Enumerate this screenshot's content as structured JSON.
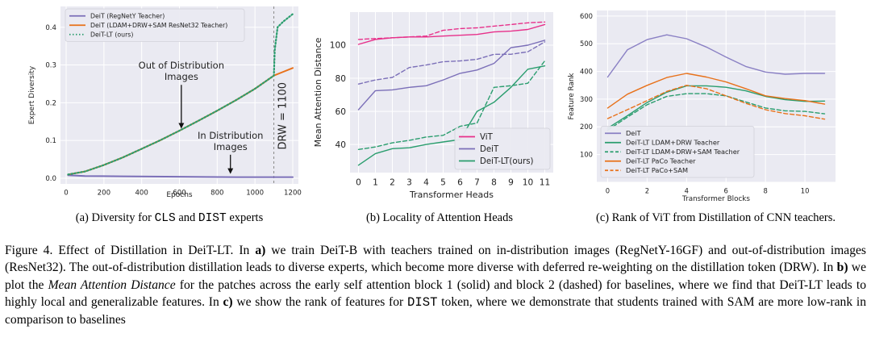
{
  "panels": {
    "a": {
      "caption_pre": "(a) Diversity for ",
      "caption_code1": "CLS",
      "caption_mid": " and ",
      "caption_code2": "DIST",
      "caption_post": " experts"
    },
    "b": {
      "caption": "(b) Locality of Attention Heads"
    },
    "c": {
      "caption": "(c) Rank of ViT from Distillation of CNN teachers."
    }
  },
  "figure_caption": {
    "p1": "Figure 4. Effect of Distillation in DeiT-LT. In ",
    "p2": "a)",
    "p3": " we train DeiT-B with teachers trained on in-distribution images (RegNetY-16GF) and out-of-distribution images (ResNet32). The out-of-distribution distillation leads to diverse experts, which become more diverse with deferred re-weighting on the distillation token (DRW). In ",
    "p4": "b)",
    "p5": " we plot the ",
    "p6": "Mean Attention Distance",
    "p7": " for the patches across the early self attention block 1 (solid) and block 2 (dashed) for baselines, where we find that DeiT-LT leads to highly local and generalizable features. In ",
    "p8": "c)",
    "p9": " we show the rank of features for ",
    "p10": "DIST",
    "p11": " token, where we demonstrate that students trained with SAM are more low-rank in comparison to baselines"
  },
  "chart_data": [
    {
      "type": "line",
      "title": "",
      "xlabel": "Epochs",
      "ylabel": "Expert Diversity",
      "xlim": [
        -30,
        1230
      ],
      "ylim": [
        -0.015,
        0.455
      ],
      "xticks": [
        0,
        200,
        400,
        600,
        800,
        1000,
        1200
      ],
      "yticks": [
        0.0,
        0.1,
        0.2,
        0.3,
        0.4
      ],
      "ytick_labels": [
        "0.0",
        "0.1",
        "0.2",
        "0.3",
        "0.4"
      ],
      "legend_position": "upper-left",
      "series": [
        {
          "name": "DeiT (RegNetY Teacher)",
          "color": "#7b6fb8",
          "style": "solid",
          "x": [
            10,
            100,
            300,
            600,
            900,
            1200
          ],
          "y": [
            0.008,
            0.006,
            0.005,
            0.004,
            0.003,
            0.003
          ]
        },
        {
          "name": "DeiT (LDAM+DRW+SAM ResNet32 Teacher)",
          "color": "#e8711a",
          "style": "solid",
          "x": [
            10,
            100,
            200,
            300,
            400,
            500,
            600,
            700,
            800,
            900,
            1000,
            1100,
            1150,
            1200
          ],
          "y": [
            0.01,
            0.018,
            0.035,
            0.055,
            0.078,
            0.101,
            0.126,
            0.152,
            0.179,
            0.207,
            0.237,
            0.272,
            0.282,
            0.292
          ]
        },
        {
          "name": "DeiT-LT (ours)",
          "color": "#2a9d6e",
          "style": "dotted",
          "x": [
            10,
            100,
            200,
            300,
            400,
            500,
            600,
            700,
            800,
            900,
            1000,
            1100,
            1105,
            1120,
            1150,
            1200
          ],
          "y": [
            0.01,
            0.018,
            0.035,
            0.055,
            0.078,
            0.101,
            0.126,
            0.152,
            0.179,
            0.207,
            0.237,
            0.272,
            0.34,
            0.4,
            0.415,
            0.435
          ]
        }
      ],
      "vline": {
        "x": 1100,
        "label": "DRW = 1100"
      },
      "annotations": [
        {
          "text": [
            "Out of Distribution",
            "Images"
          ],
          "arrow_to": {
            "x": 610,
            "y": 0.125
          },
          "text_pos": {
            "x": 610,
            "y": 0.29
          }
        },
        {
          "text": [
            "In Distribution",
            "Images"
          ],
          "arrow_to": {
            "x": 870,
            "y": 0.005
          },
          "text_pos": {
            "x": 870,
            "y": 0.105
          }
        }
      ]
    },
    {
      "type": "line",
      "title": "",
      "xlabel": "Transformer Heads",
      "ylabel": "Mean Attention Distance",
      "xlim": [
        -0.5,
        11.5
      ],
      "ylim": [
        23,
        120
      ],
      "xticks": [
        0,
        1,
        2,
        3,
        4,
        5,
        6,
        7,
        8,
        9,
        10,
        11
      ],
      "yticks": [
        40,
        60,
        80,
        100
      ],
      "ytick_labels": [
        "40",
        "60",
        "80",
        "100"
      ],
      "legend_position": "lower-right",
      "series": [
        {
          "name": "ViT",
          "color": "#e7308a",
          "style": "solid",
          "x": [
            0,
            1,
            2,
            3,
            4,
            5,
            6,
            7,
            8,
            9,
            10,
            11
          ],
          "y": [
            100.5,
            103.5,
            104.5,
            105,
            105,
            105.5,
            106,
            106.5,
            108,
            108.5,
            109.5,
            112.5
          ]
        },
        {
          "name": "",
          "color": "#e7308a",
          "style": "dashed",
          "x": [
            0,
            1,
            2,
            3,
            4,
            5,
            6,
            7,
            8,
            9,
            10,
            11
          ],
          "y": [
            103.5,
            104,
            104.5,
            105,
            105.5,
            109,
            110,
            110.5,
            111.5,
            112.5,
            113.5,
            114
          ]
        },
        {
          "name": "DeiT",
          "color": "#7b6fb8",
          "style": "solid",
          "x": [
            0,
            1,
            2,
            3,
            4,
            5,
            6,
            7,
            8,
            9,
            10,
            11
          ],
          "y": [
            61,
            72.5,
            73,
            74.5,
            75.5,
            79,
            83,
            85,
            89,
            98.5,
            100,
            103
          ]
        },
        {
          "name": "",
          "color": "#7b6fb8",
          "style": "dashed",
          "x": [
            0,
            1,
            2,
            3,
            4,
            5,
            6,
            7,
            8,
            9,
            10,
            11
          ],
          "y": [
            76.5,
            79,
            80.5,
            86.5,
            88,
            90,
            90.5,
            91.5,
            94.5,
            94.5,
            96,
            102
          ]
        },
        {
          "name": "DeiT-LT(ours)",
          "color": "#2a9d6e",
          "style": "solid",
          "x": [
            0,
            1,
            2,
            3,
            4,
            5,
            6,
            7,
            8,
            9,
            10,
            11
          ],
          "y": [
            27.5,
            34.5,
            37.5,
            38,
            40,
            41.5,
            43,
            60,
            65.5,
            74.5,
            85.5,
            87.5
          ]
        },
        {
          "name": "",
          "color": "#2a9d6e",
          "style": "dashed",
          "x": [
            0,
            1,
            2,
            3,
            4,
            5,
            6,
            7,
            8,
            9,
            10,
            11
          ],
          "y": [
            37,
            38.5,
            41,
            42.5,
            44.5,
            45.5,
            51,
            53,
            74.5,
            75.5,
            77,
            90.5
          ]
        }
      ]
    },
    {
      "type": "line",
      "title": "",
      "xlabel": "Transformer Blocks",
      "ylabel": "Feature Rank",
      "xlim": [
        -0.55,
        11.55
      ],
      "ylim": [
        0,
        620
      ],
      "xticks": [
        0,
        2,
        4,
        6,
        8,
        10
      ],
      "yticks": [
        0,
        100,
        200,
        300,
        400,
        500,
        600
      ],
      "ytick_labels": [
        "",
        "100",
        "200",
        "300",
        "400",
        "500",
        "600"
      ],
      "legend_position": "lower-left",
      "series": [
        {
          "name": "DeiT",
          "color": "#8a80c4",
          "style": "solid",
          "x": [
            0,
            1,
            2,
            3,
            4,
            5,
            6,
            7,
            8,
            9,
            10,
            11
          ],
          "y": [
            380,
            478,
            515,
            532,
            518,
            488,
            452,
            418,
            398,
            390,
            393,
            393
          ]
        },
        {
          "name": "DeiT-LT LDAM+DRW Teacher",
          "color": "#2a9d6e",
          "style": "solid",
          "x": [
            0,
            1,
            2,
            3,
            4,
            5,
            6,
            7,
            8,
            9,
            10,
            11
          ],
          "y": [
            195,
            240,
            288,
            325,
            348,
            348,
            343,
            330,
            310,
            298,
            292,
            293
          ]
        },
        {
          "name": "DeiT-LT LDAM+DRW+SAM Teacher",
          "color": "#2a9d6e",
          "style": "dashed",
          "x": [
            0,
            1,
            2,
            3,
            4,
            5,
            6,
            7,
            8,
            9,
            10,
            11
          ],
          "y": [
            188,
            235,
            280,
            310,
            320,
            320,
            312,
            290,
            268,
            258,
            256,
            247
          ]
        },
        {
          "name": "DeiT-LT PaCo Teacher",
          "color": "#e8711a",
          "style": "solid",
          "x": [
            0,
            1,
            2,
            3,
            4,
            5,
            6,
            7,
            8,
            9,
            10,
            11
          ],
          "y": [
            268,
            318,
            350,
            378,
            393,
            380,
            362,
            338,
            312,
            302,
            295,
            282
          ]
        },
        {
          "name": "DeiT-LT PaCo+SAM",
          "color": "#e8711a",
          "style": "dashed",
          "x": [
            0,
            1,
            2,
            3,
            4,
            5,
            6,
            7,
            8,
            9,
            10,
            11
          ],
          "y": [
            230,
            262,
            295,
            328,
            350,
            338,
            312,
            285,
            262,
            248,
            240,
            228
          ]
        }
      ]
    }
  ]
}
